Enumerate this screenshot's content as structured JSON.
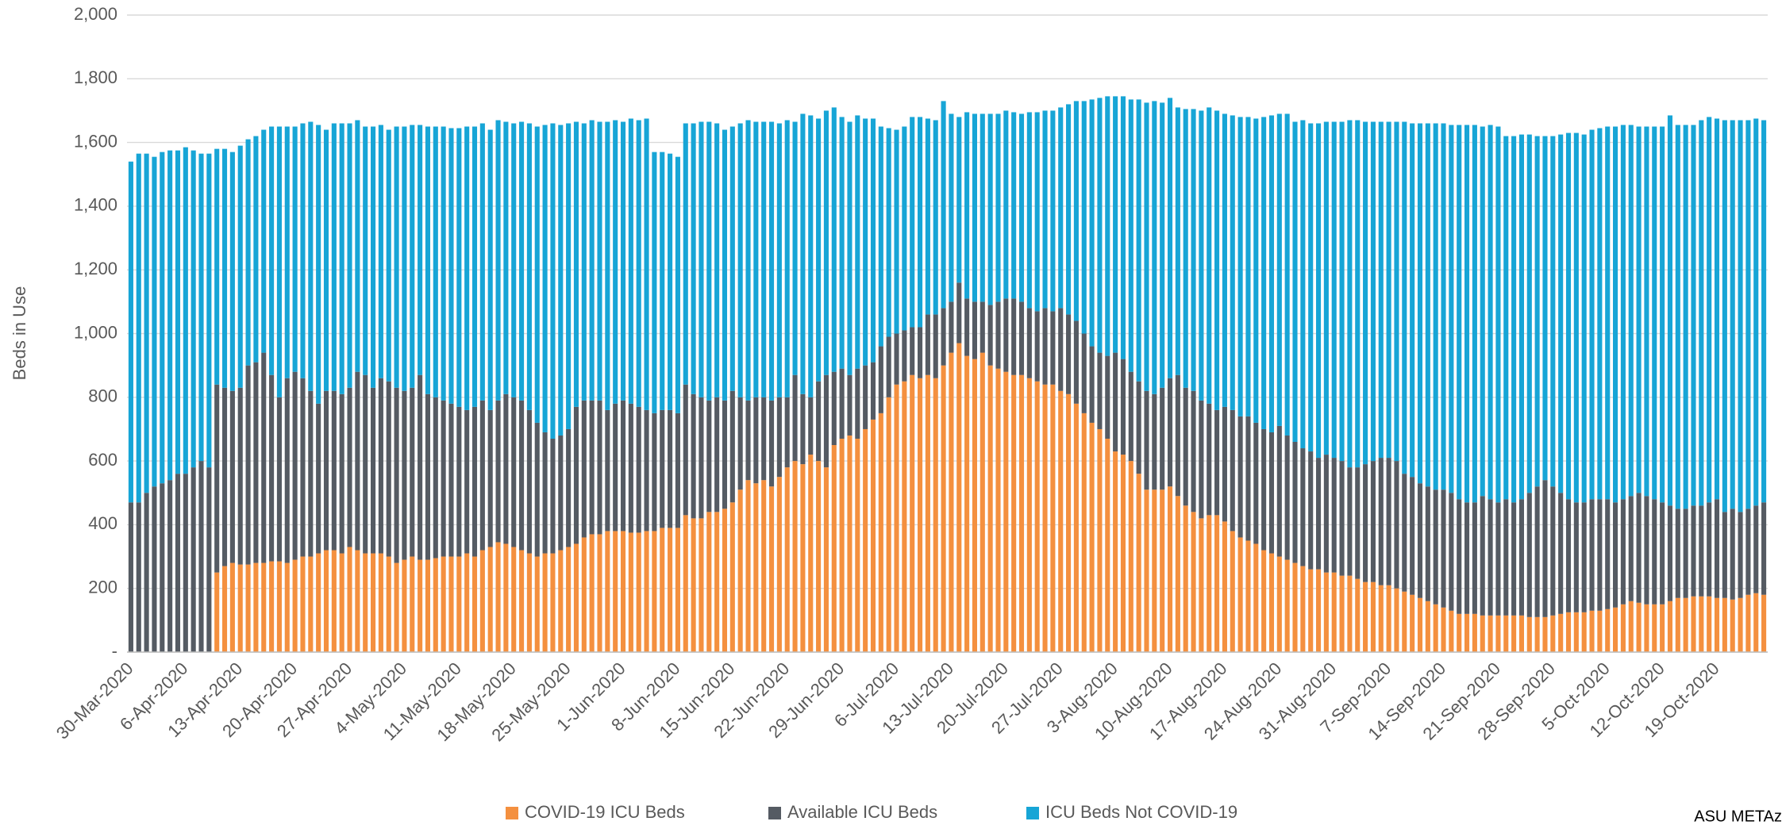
{
  "chart_data": {
    "type": "stacked_bar",
    "y_label": "Beds in Use",
    "source": "ASU METAz",
    "categories": [
      "30-Mar-2020",
      null,
      null,
      null,
      null,
      null,
      null,
      "6-Apr-2020",
      null,
      null,
      null,
      null,
      null,
      null,
      "13-Apr-2020",
      null,
      null,
      null,
      null,
      null,
      null,
      "20-Apr-2020",
      null,
      null,
      null,
      null,
      null,
      null,
      "27-Apr-2020",
      null,
      null,
      null,
      null,
      null,
      null,
      "4-May-2020",
      null,
      null,
      null,
      null,
      null,
      null,
      "11-May-2020",
      null,
      null,
      null,
      null,
      null,
      null,
      "18-May-2020",
      null,
      null,
      null,
      null,
      null,
      null,
      "25-May-2020",
      null,
      null,
      null,
      null,
      null,
      null,
      "1-Jun-2020",
      null,
      null,
      null,
      null,
      null,
      null,
      "8-Jun-2020",
      null,
      null,
      null,
      null,
      null,
      null,
      "15-Jun-2020",
      null,
      null,
      null,
      null,
      null,
      null,
      "22-Jun-2020",
      null,
      null,
      null,
      null,
      null,
      null,
      "29-Jun-2020",
      null,
      null,
      null,
      null,
      null,
      null,
      "6-Jul-2020",
      null,
      null,
      null,
      null,
      null,
      null,
      "13-Jul-2020",
      null,
      null,
      null,
      null,
      null,
      null,
      "20-Jul-2020",
      null,
      null,
      null,
      null,
      null,
      null,
      "27-Jul-2020",
      null,
      null,
      null,
      null,
      null,
      null,
      "3-Aug-2020",
      null,
      null,
      null,
      null,
      null,
      null,
      "10-Aug-2020",
      null,
      null,
      null,
      null,
      null,
      null,
      "17-Aug-2020",
      null,
      null,
      null,
      null,
      null,
      null,
      "24-Aug-2020",
      null,
      null,
      null,
      null,
      null,
      null,
      "31-Aug-2020",
      null,
      null,
      null,
      null,
      null,
      null,
      "7-Sep-2020",
      null,
      null,
      null,
      null,
      null,
      null,
      "14-Sep-2020",
      null,
      null,
      null,
      null,
      null,
      null,
      "21-Sep-2020",
      null,
      null,
      null,
      null,
      null,
      null,
      "28-Sep-2020",
      null,
      null,
      null,
      null,
      null,
      null,
      "5-Oct-2020",
      null,
      null,
      null,
      null,
      null,
      null,
      "12-Oct-2020",
      null,
      null,
      null,
      null,
      null,
      null,
      "19-Oct-2020",
      null,
      null,
      null,
      null,
      null,
      null
    ],
    "series": [
      {
        "name": "COVID-19 ICU Beds",
        "color": "#f4903f",
        "values": [
          null,
          null,
          null,
          null,
          null,
          null,
          null,
          null,
          null,
          null,
          null,
          250,
          270,
          280,
          275,
          275,
          280,
          280,
          285,
          285,
          280,
          290,
          300,
          300,
          310,
          320,
          320,
          310,
          330,
          320,
          310,
          310,
          310,
          300,
          280,
          290,
          300,
          290,
          290,
          295,
          300,
          300,
          300,
          310,
          300,
          320,
          330,
          345,
          340,
          330,
          320,
          310,
          300,
          310,
          310,
          320,
          330,
          340,
          360,
          370,
          370,
          380,
          380,
          380,
          375,
          375,
          380,
          380,
          390,
          390,
          390,
          430,
          420,
          420,
          440,
          440,
          450,
          470,
          510,
          540,
          530,
          540,
          520,
          550,
          580,
          600,
          590,
          620,
          600,
          580,
          650,
          670,
          680,
          670,
          700,
          730,
          750,
          800,
          840,
          850,
          870,
          860,
          870,
          860,
          900,
          940,
          970,
          930,
          920,
          940,
          900,
          890,
          880,
          870,
          870,
          860,
          850,
          840,
          840,
          820,
          810,
          780,
          750,
          720,
          700,
          670,
          630,
          620,
          600,
          560,
          510,
          510,
          510,
          520,
          490,
          460,
          440,
          420,
          430,
          430,
          410,
          380,
          360,
          350,
          340,
          320,
          310,
          300,
          290,
          280,
          270,
          260,
          260,
          250,
          250,
          240,
          240,
          230,
          220,
          220,
          210,
          210,
          200,
          190,
          180,
          170,
          160,
          150,
          140,
          130,
          120,
          120,
          120,
          115,
          115,
          115,
          115,
          115,
          115,
          110,
          110,
          110,
          115,
          120,
          125,
          125,
          125,
          130,
          130,
          135,
          140,
          150,
          160,
          155,
          150,
          150,
          150,
          160,
          170,
          170,
          175,
          175,
          175,
          170,
          170,
          165,
          170,
          180,
          185,
          180
        ]
      },
      {
        "name": "Available ICU Beds",
        "color": "#555b63",
        "values": [
          470,
          470,
          500,
          520,
          530,
          540,
          560,
          560,
          580,
          600,
          580,
          590,
          560,
          540,
          555,
          625,
          630,
          660,
          585,
          515,
          580,
          590,
          560,
          520,
          470,
          500,
          500,
          500,
          500,
          560,
          560,
          520,
          550,
          550,
          550,
          530,
          530,
          580,
          520,
          505,
          490,
          480,
          470,
          450,
          470,
          470,
          430,
          445,
          470,
          470,
          470,
          450,
          420,
          380,
          360,
          360,
          370,
          430,
          430,
          420,
          420,
          380,
          400,
          410,
          405,
          395,
          380,
          370,
          370,
          370,
          360,
          410,
          390,
          380,
          350,
          360,
          340,
          350,
          290,
          250,
          270,
          260,
          270,
          250,
          220,
          270,
          220,
          180,
          250,
          290,
          230,
          220,
          190,
          220,
          200,
          180,
          210,
          190,
          160,
          160,
          150,
          160,
          190,
          200,
          180,
          160,
          190,
          180,
          180,
          160,
          190,
          210,
          230,
          240,
          230,
          220,
          220,
          240,
          230,
          260,
          250,
          260,
          250,
          240,
          240,
          260,
          310,
          300,
          280,
          290,
          310,
          300,
          320,
          340,
          380,
          370,
          380,
          370,
          350,
          330,
          360,
          380,
          380,
          390,
          380,
          380,
          380,
          410,
          390,
          380,
          370,
          370,
          350,
          370,
          360,
          360,
          340,
          350,
          370,
          380,
          400,
          400,
          400,
          370,
          370,
          360,
          360,
          360,
          370,
          370,
          360,
          350,
          350,
          375,
          365,
          355,
          365,
          355,
          365,
          390,
          410,
          430,
          405,
          380,
          355,
          345,
          345,
          350,
          350,
          345,
          330,
          330,
          330,
          345,
          340,
          330,
          320,
          300,
          280,
          280,
          285,
          285,
          295,
          310,
          270,
          285,
          270,
          270,
          275,
          290
        ]
      },
      {
        "name": "ICU Beds Not COVID-19",
        "color": "#17a5d6",
        "values": [
          1070,
          1095,
          1065,
          1035,
          1040,
          1035,
          1015,
          1025,
          995,
          965,
          985,
          740,
          750,
          750,
          760,
          710,
          710,
          700,
          780,
          850,
          790,
          770,
          800,
          845,
          875,
          820,
          840,
          850,
          830,
          790,
          780,
          820,
          795,
          790,
          820,
          830,
          825,
          785,
          840,
          850,
          860,
          865,
          875,
          890,
          880,
          870,
          880,
          880,
          855,
          860,
          875,
          900,
          930,
          965,
          990,
          975,
          960,
          895,
          870,
          880,
          875,
          905,
          890,
          875,
          895,
          900,
          915,
          820,
          810,
          805,
          805,
          820,
          850,
          865,
          875,
          860,
          850,
          830,
          860,
          880,
          865,
          865,
          875,
          860,
          870,
          795,
          880,
          885,
          825,
          830,
          830,
          790,
          795,
          795,
          775,
          765,
          690,
          655,
          640,
          640,
          660,
          660,
          615,
          610,
          650,
          590,
          520,
          585,
          590,
          590,
          600,
          590,
          590,
          585,
          590,
          615,
          625,
          620,
          630,
          630,
          660,
          690,
          730,
          775,
          800,
          815,
          805,
          825,
          855,
          885,
          905,
          920,
          895,
          880,
          840,
          875,
          885,
          910,
          930,
          940,
          920,
          925,
          940,
          940,
          955,
          980,
          995,
          980,
          1010,
          1005,
          1030,
          1030,
          1050,
          1045,
          1055,
          1065,
          1090,
          1090,
          1075,
          1065,
          1055,
          1055,
          1065,
          1105,
          1110,
          1130,
          1140,
          1150,
          1150,
          1155,
          1175,
          1185,
          1185,
          1160,
          1175,
          1180,
          1140,
          1150,
          1145,
          1125,
          1100,
          1080,
          1100,
          1125,
          1150,
          1160,
          1155,
          1160,
          1165,
          1170,
          1180,
          1175,
          1165,
          1150,
          1160,
          1170,
          1180,
          1225,
          1205,
          1205,
          1195,
          1210,
          1210,
          1195,
          1230,
          1220,
          1230,
          1220,
          1215,
          1200
        ]
      }
    ],
    "ylim": [
      0,
      2000
    ],
    "yticks": [
      {
        "value": 0,
        "label": "-"
      },
      200,
      400,
      600,
      800,
      {
        "value": 1000,
        "label": "1,000"
      },
      {
        "value": 1200,
        "label": "1,200"
      },
      {
        "value": 1400,
        "label": "1,400"
      },
      {
        "value": 1600,
        "label": "1,600"
      },
      {
        "value": 1800,
        "label": "1,800"
      },
      {
        "value": 2000,
        "label": "2,000"
      }
    ],
    "grid": true,
    "legend": "bottom"
  }
}
